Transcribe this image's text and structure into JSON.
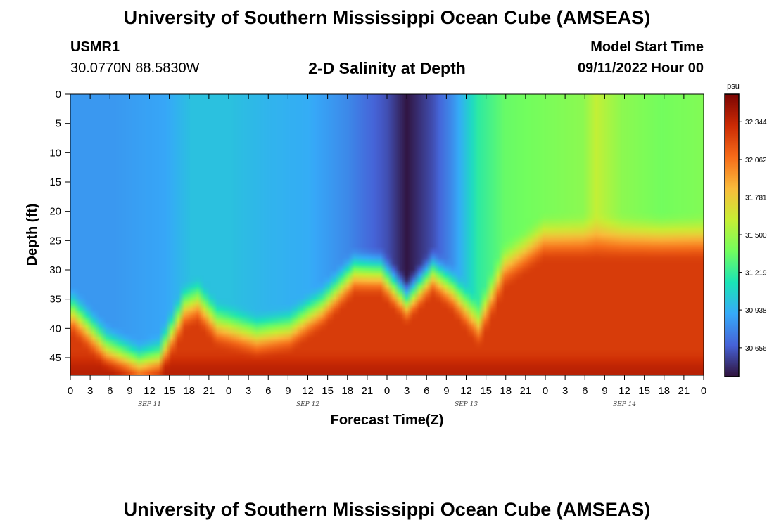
{
  "page": {
    "title": "University of Southern Mississippi Ocean Cube (AMSEAS)",
    "station_id": "USMR1",
    "coordinates": "30.0770N  88.5830W",
    "subtitle": "2-D Salinity at Depth",
    "model_start_label": "Model Start Time",
    "model_start_value": "09/11/2022 Hour 00",
    "footer_title": "University of Southern Mississippi Ocean Cube (AMSEAS)"
  },
  "chart_data": {
    "type": "heatmap",
    "title": "2-D Salinity at Depth",
    "xlabel": "Forecast Time(Z)",
    "ylabel": "Depth (ft)",
    "x_hours_range": [
      0,
      96
    ],
    "x_tick_step_hours": 3,
    "x_tick_labels": [
      "0",
      "3",
      "6",
      "9",
      "12",
      "15",
      "18",
      "21",
      "0",
      "3",
      "6",
      "9",
      "12",
      "15",
      "18",
      "21",
      "0",
      "3",
      "6",
      "9",
      "12",
      "15",
      "18",
      "21",
      "0",
      "3",
      "6",
      "9",
      "12",
      "15",
      "18",
      "21",
      "0"
    ],
    "date_labels": [
      {
        "label": "SEP 11",
        "hour": 12
      },
      {
        "label": "SEP 12",
        "hour": 36
      },
      {
        "label": "SEP 13",
        "hour": 60
      },
      {
        "label": "SEP 14",
        "hour": 84
      }
    ],
    "y_range_ft": [
      0,
      48
    ],
    "y_tick_labels": [
      "0",
      "5",
      "10",
      "15",
      "20",
      "25",
      "30",
      "35",
      "40",
      "45"
    ],
    "y_ticks": [
      0,
      5,
      10,
      15,
      20,
      25,
      30,
      35,
      40,
      45
    ],
    "colorbar": {
      "unit": "psu",
      "range": [
        30.44,
        32.55
      ],
      "labels": [
        "32.344",
        "32.062",
        "31.781",
        "31.500",
        "31.219",
        "30.938",
        "30.656"
      ],
      "colors": [
        "#30123b",
        "#4662d7",
        "#36aaf9",
        "#1ae4b6",
        "#72fe5e",
        "#c7ef34",
        "#fabb3b",
        "#f66b19",
        "#cb2a04",
        "#7a0403"
      ]
    },
    "surface_salinity_by_hour": [
      {
        "hour": 0,
        "psu": 30.85
      },
      {
        "hour": 6,
        "psu": 30.85
      },
      {
        "hour": 14,
        "psu": 30.9
      },
      {
        "hour": 18,
        "psu": 31.0
      },
      {
        "hour": 24,
        "psu": 31.0
      },
      {
        "hour": 30,
        "psu": 30.95
      },
      {
        "hour": 36,
        "psu": 30.92
      },
      {
        "hour": 42,
        "psu": 30.8
      },
      {
        "hour": 48,
        "psu": 30.62
      },
      {
        "hour": 51,
        "psu": 30.45
      },
      {
        "hour": 55,
        "psu": 30.62
      },
      {
        "hour": 58,
        "psu": 30.82
      },
      {
        "hour": 62,
        "psu": 31.2
      },
      {
        "hour": 66,
        "psu": 31.35
      },
      {
        "hour": 72,
        "psu": 31.4
      },
      {
        "hour": 78,
        "psu": 31.45
      },
      {
        "hour": 80,
        "psu": 31.6
      },
      {
        "hour": 84,
        "psu": 31.45
      },
      {
        "hour": 90,
        "psu": 31.38
      },
      {
        "hour": 96,
        "psu": 31.42
      }
    ],
    "halocline_depth_ft_by_hour": [
      {
        "hour": 0,
        "depth": 38
      },
      {
        "hour": 5,
        "depth": 44
      },
      {
        "hour": 10,
        "depth": 47
      },
      {
        "hour": 13,
        "depth": 46
      },
      {
        "hour": 17,
        "depth": 37
      },
      {
        "hour": 19,
        "depth": 36
      },
      {
        "hour": 22,
        "depth": 40
      },
      {
        "hour": 28,
        "depth": 42
      },
      {
        "hour": 33,
        "depth": 41
      },
      {
        "hour": 38,
        "depth": 37
      },
      {
        "hour": 43,
        "depth": 31
      },
      {
        "hour": 47,
        "depth": 31
      },
      {
        "hour": 51,
        "depth": 36
      },
      {
        "hour": 55,
        "depth": 31
      },
      {
        "hour": 58,
        "depth": 34
      },
      {
        "hour": 62,
        "depth": 40
      },
      {
        "hour": 66,
        "depth": 30
      },
      {
        "hour": 72,
        "depth": 25
      },
      {
        "hour": 84,
        "depth": 25
      },
      {
        "hour": 90,
        "depth": 25
      },
      {
        "hour": 96,
        "depth": 25
      }
    ],
    "bottom_salinity_psu": 32.25
  }
}
